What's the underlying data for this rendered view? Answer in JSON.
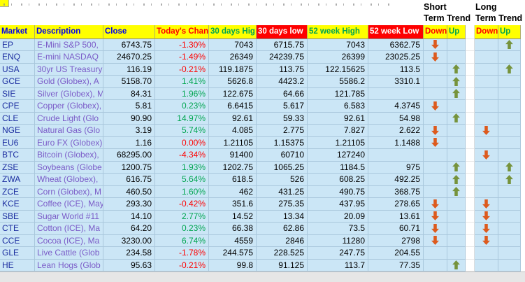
{
  "sheet": {
    "trend_headers": {
      "short": {
        "line1": "Short",
        "line2": "Term Trend"
      },
      "long": {
        "line1": "Long",
        "line2": "Term Trend"
      }
    },
    "columns": [
      {
        "label": "Market"
      },
      {
        "label": "Description"
      },
      {
        "label": "Close"
      },
      {
        "label": "Today's Chan"
      },
      {
        "label": "30 days Hig"
      },
      {
        "label": "30 days low"
      },
      {
        "label": "52 week High"
      },
      {
        "label": "52 week Low"
      },
      {
        "label": "Down"
      },
      {
        "label": "Up"
      },
      {
        "label": ""
      },
      {
        "label": "Down"
      },
      {
        "label": "Up"
      }
    ],
    "rows": [
      {
        "market": "EP",
        "description": "E-Mini S&P 500,",
        "close": "6743.75",
        "change": "-1.30%",
        "high30": "7043",
        "low30": "6715.75",
        "high52": "7043",
        "low52": "6362.75",
        "short_trend": "down",
        "long_trend": "up"
      },
      {
        "market": "ENQ",
        "description": "E-mini NASDAQ",
        "close": "24670.25",
        "change": "-1.49%",
        "high30": "26349",
        "low30": "24239.75",
        "high52": "26399",
        "low52": "23025.25",
        "short_trend": "down",
        "long_trend": ""
      },
      {
        "market": "USA",
        "description": "30yr US Treasury",
        "close": "116.19",
        "change": "-0.21%",
        "high30": "119.1875",
        "low30": "113.75",
        "high52": "122.15625",
        "low52": "113.5",
        "short_trend": "up",
        "long_trend": "up"
      },
      {
        "market": "GCE",
        "description": "Gold (Globex), A",
        "close": "5158.70",
        "change": "1.41%",
        "high30": "5626.8",
        "low30": "4423.2",
        "high52": "5586.2",
        "low52": "3310.1",
        "short_trend": "up",
        "long_trend": ""
      },
      {
        "market": "SIE",
        "description": "Silver (Globex), M",
        "close": "84.31",
        "change": "1.96%",
        "high30": "122.675",
        "low30": "64.66",
        "high52": "121.785",
        "low52": "",
        "short_trend": "up",
        "long_trend": ""
      },
      {
        "market": "CPE",
        "description": "Copper (Globex),",
        "close": "5.81",
        "change": "0.23%",
        "high30": "6.6415",
        "low30": "5.617",
        "high52": "6.583",
        "low52": "4.3745",
        "short_trend": "down",
        "long_trend": ""
      },
      {
        "market": "CLE",
        "description": "Crude Light (Glo",
        "close": "90.90",
        "change": "14.97%",
        "high30": "92.61",
        "low30": "59.33",
        "high52": "92.61",
        "low52": "54.98",
        "short_trend": "up",
        "long_trend": ""
      },
      {
        "market": "NGE",
        "description": "Natural Gas (Glo",
        "close": "3.19",
        "change": "5.74%",
        "high30": "4.085",
        "low30": "2.775",
        "high52": "7.827",
        "low52": "2.622",
        "short_trend": "down",
        "long_trend": "down"
      },
      {
        "market": "EU6",
        "description": "Euro FX (Globex)",
        "close": "1.16",
        "change": "0.00%",
        "high30": "1.21105",
        "low30": "1.15375",
        "high52": "1.21105",
        "low52": "1.1488",
        "short_trend": "down",
        "long_trend": ""
      },
      {
        "market": "BTC",
        "description": "Bitcoin (Globex),",
        "close": "68295.00",
        "change": "-4.34%",
        "high30": "91400",
        "low30": "60710",
        "high52": "127240",
        "low52": "",
        "short_trend": "",
        "long_trend": "down"
      },
      {
        "market": "ZSE",
        "description": "Soybeans (Globe",
        "close": "1200.75",
        "change": "1.93%",
        "high30": "1202.75",
        "low30": "1065.25",
        "high52": "1184.5",
        "low52": "975",
        "short_trend": "up",
        "long_trend": "up"
      },
      {
        "market": "ZWA",
        "description": "Wheat (Globex),",
        "close": "616.75",
        "change": "5.64%",
        "high30": "618.5",
        "low30": "526",
        "high52": "608.25",
        "low52": "492.25",
        "short_trend": "up",
        "long_trend": "up"
      },
      {
        "market": "ZCE",
        "description": "Corn (Globex), M",
        "close": "460.50",
        "change": "1.60%",
        "high30": "462",
        "low30": "431.25",
        "high52": "490.75",
        "low52": "368.75",
        "short_trend": "up",
        "long_trend": ""
      },
      {
        "market": "KCE",
        "description": "Coffee (ICE), May",
        "close": "293.30",
        "change": "-0.42%",
        "high30": "351.6",
        "low30": "275.35",
        "high52": "437.95",
        "low52": "278.65",
        "short_trend": "down",
        "long_trend": "down"
      },
      {
        "market": "SBE",
        "description": "Sugar World #11",
        "close": "14.10",
        "change": "2.77%",
        "high30": "14.52",
        "low30": "13.34",
        "high52": "20.09",
        "low52": "13.61",
        "short_trend": "down",
        "long_trend": "down"
      },
      {
        "market": "CTE",
        "description": "Cotton (ICE), Ma",
        "close": "64.20",
        "change": "0.23%",
        "high30": "66.38",
        "low30": "62.86",
        "high52": "73.5",
        "low52": "60.71",
        "short_trend": "down",
        "long_trend": "down"
      },
      {
        "market": "CCE",
        "description": "Cocoa (ICE), Ma",
        "close": "3230.00",
        "change": "6.74%",
        "high30": "4559",
        "low30": "2846",
        "high52": "11280",
        "low52": "2798",
        "short_trend": "down",
        "long_trend": "down"
      },
      {
        "market": "GLE",
        "description": "Live Cattle (Glob",
        "close": "234.58",
        "change": "-1.78%",
        "high30": "244.575",
        "low30": "228.525",
        "high52": "247.75",
        "low52": "204.55",
        "short_trend": "",
        "long_trend": ""
      },
      {
        "market": "HE",
        "description": "Lean Hogs (Glob",
        "close": "95.63",
        "change": "-0.21%",
        "high30": "99.8",
        "low30": "91.125",
        "high52": "113.7",
        "low52": "77.35",
        "short_trend": "up",
        "long_trend": ""
      }
    ],
    "colors": {
      "header_bg": "#ffff00",
      "header_text_blue": "#0000ee",
      "header_text_red": "#ff0000",
      "header_text_green": "#00a550",
      "alert_bg": "#fe0000",
      "alert_text": "#ffffff",
      "cell_bg": "#cbe6f6",
      "gridline": "#a9c7dc",
      "market_text": "#1c2ea0",
      "description_text": "#7b5cc8",
      "positive": "#00a550",
      "negative": "#ff0000",
      "trend_up": "#76933c",
      "trend_down": "#dd5a1d",
      "bottom_strip": "#e6e6e6",
      "remnant": "#8a8a8a"
    }
  }
}
